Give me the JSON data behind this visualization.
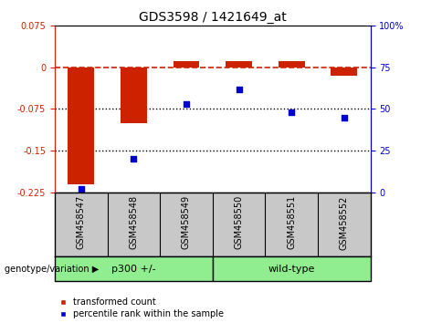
{
  "title": "GDS3598 / 1421649_at",
  "categories": [
    "GSM458547",
    "GSM458548",
    "GSM458549",
    "GSM458550",
    "GSM458551",
    "GSM458552"
  ],
  "bar_values": [
    -0.21,
    -0.1,
    0.012,
    0.012,
    0.012,
    -0.015
  ],
  "scatter_values": [
    2,
    20,
    53,
    62,
    48,
    45
  ],
  "ylim_left": [
    -0.225,
    0.075
  ],
  "ylim_right": [
    0,
    100
  ],
  "yticks_left": [
    0.075,
    0,
    -0.075,
    -0.15,
    -0.225
  ],
  "yticks_right": [
    100,
    75,
    50,
    25,
    0
  ],
  "bar_color": "#cc2200",
  "scatter_color": "#0000cc",
  "hline_color": "#cc2200",
  "dotted_line_color": "#000000",
  "group1_label": "p300 +/-",
  "group2_label": "wild-type",
  "group1_indices": [
    0,
    1,
    2
  ],
  "group2_indices": [
    3,
    4,
    5
  ],
  "group_color": "#90ee90",
  "group_label_prefix": "genotype/variation",
  "legend_items": [
    "transformed count",
    "percentile rank within the sample"
  ],
  "background_color": "#ffffff",
  "plot_bg_color": "#ffffff",
  "xlabel_bg_color": "#c8c8c8"
}
